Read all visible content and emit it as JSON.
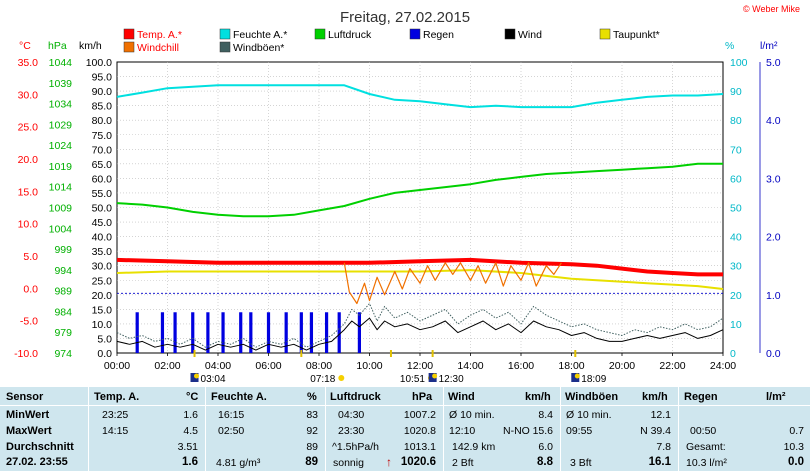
{
  "title": "Freitag, 27.02.2015",
  "credit": "© Weber Mike",
  "chart_data": {
    "type": "line",
    "title": "Freitag, 27.02.2015",
    "legend": [
      {
        "name": "Temp. A.*",
        "color": "#ff0000"
      },
      {
        "name": "Feuchte A.*",
        "color": "#00e0e0"
      },
      {
        "name": "Luftdruck",
        "color": "#00d000"
      },
      {
        "name": "Regen",
        "color": "#0000e0"
      },
      {
        "name": "Wind",
        "color": "#000000"
      },
      {
        "name": "Taupunkt*",
        "color": "#e8e000"
      },
      {
        "name": "Windchill",
        "color": "#f07000"
      },
      {
        "name": "Windböen*",
        "color": "#406060"
      }
    ],
    "axes": {
      "temp": {
        "unit": "°C",
        "ticks": [
          "35.0",
          "30.0",
          "25.0",
          "20.0",
          "15.0",
          "10.0",
          "5.0",
          "0.0",
          "-5.0",
          "-10.0"
        ],
        "color": "#ff0000"
      },
      "press": {
        "unit": "hPa",
        "ticks": [
          "1044",
          "1039",
          "1034",
          "1029",
          "1024",
          "1019",
          "1014",
          "1009",
          "1004",
          "999",
          "994",
          "989",
          "984",
          "979",
          "974"
        ],
        "color": "#00b000"
      },
      "wind": {
        "unit": "km/h",
        "ticks": [
          "100.0",
          "95.0",
          "90.0",
          "85.0",
          "80.0",
          "75.0",
          "70.0",
          "65.0",
          "60.0",
          "55.0",
          "50.0",
          "45.0",
          "40.0",
          "35.0",
          "30.0",
          "25.0",
          "20.0",
          "15.0",
          "10.0",
          "5.0",
          "0.0"
        ],
        "color": "#000000"
      },
      "hum": {
        "unit": "%",
        "ticks": [
          "100",
          "90",
          "80",
          "70",
          "60",
          "50",
          "40",
          "30",
          "20",
          "10",
          "0"
        ],
        "color": "#00b8c8"
      },
      "rain": {
        "unit": "l/m²",
        "ticks": [
          "5.0",
          "4.0",
          "3.0",
          "2.0",
          "1.0",
          "0.0"
        ],
        "color": "#0000c0"
      },
      "x_ticks": [
        "00:00",
        "02:00",
        "04:00",
        "06:00",
        "08:00",
        "10:00",
        "12:00",
        "14:00",
        "16:00",
        "18:00",
        "20:00",
        "22:00",
        "24:00"
      ]
    },
    "xlim": [
      0,
      24
    ],
    "ylim_wind": [
      0,
      100
    ],
    "grid": true,
    "series": [
      {
        "name": "Temp. A.*",
        "axis": "wind",
        "x": [
          0,
          2,
          4,
          6,
          8,
          10,
          12,
          14,
          16,
          18,
          19,
          20,
          21,
          22,
          23,
          24
        ],
        "values": [
          32,
          31.5,
          31,
          31,
          31,
          31,
          31.5,
          32,
          31,
          30.5,
          30,
          29,
          28,
          27.5,
          27,
          27
        ]
      },
      {
        "name": "Feuchte A.*",
        "axis": "wind",
        "x": [
          0,
          1,
          2,
          3,
          4,
          6,
          8,
          9,
          10,
          11,
          12,
          13,
          14,
          15,
          16,
          18,
          19,
          20,
          21,
          22,
          23,
          24
        ],
        "values": [
          88,
          89.5,
          91,
          91.5,
          92,
          92,
          92,
          92,
          89,
          87,
          86.5,
          85.5,
          84.5,
          85,
          84.5,
          84.5,
          86,
          87,
          88,
          88.5,
          88.5,
          89
        ]
      },
      {
        "name": "Luftdruck",
        "axis": "wind",
        "x": [
          0,
          1,
          2,
          3,
          4,
          5,
          6,
          7,
          8,
          9,
          10,
          11,
          12,
          13,
          14,
          15,
          16,
          17,
          18,
          19,
          20,
          21,
          22,
          23,
          24
        ],
        "values": [
          51.5,
          51,
          50,
          48.5,
          47.5,
          47,
          47,
          47.5,
          49,
          50.5,
          53,
          55,
          56,
          57,
          58,
          59.5,
          60.5,
          61.5,
          62,
          62.5,
          63,
          63.5,
          64,
          65,
          65
        ]
      },
      {
        "name": "Taupunkt*",
        "axis": "wind",
        "x": [
          0,
          2,
          4,
          6,
          8,
          10,
          12,
          14,
          16,
          17,
          18,
          19,
          20,
          21,
          22,
          23,
          24
        ],
        "values": [
          27.5,
          28,
          28,
          28,
          28,
          28,
          28,
          28.5,
          27.5,
          26.5,
          25.5,
          25,
          24.5,
          24,
          23.5,
          23,
          22
        ]
      },
      {
        "name": "Windchill",
        "axis": "wind",
        "x": [
          9.0,
          9.2,
          9.5,
          9.8,
          10.0,
          10.3,
          10.6,
          11.0,
          11.3,
          11.6,
          12.0,
          12.3,
          12.6,
          13.0,
          13.3,
          13.6,
          14.0,
          14.3,
          14.6,
          15.0,
          15.3,
          15.6,
          16.0,
          16.3,
          16.6,
          17.0,
          17.3,
          17.6
        ],
        "values": [
          31,
          21,
          17,
          24,
          18,
          26,
          20,
          28,
          22,
          29,
          24,
          30,
          25,
          31,
          27,
          31,
          25,
          30,
          24,
          31,
          23,
          30,
          25,
          31,
          23,
          30,
          27,
          31
        ]
      },
      {
        "name": "Windböen*",
        "axis": "wind",
        "x": [
          0,
          0.5,
          1,
          1.5,
          2,
          2.5,
          3,
          3.5,
          4,
          4.5,
          5,
          5.5,
          6,
          6.5,
          7,
          7.5,
          8,
          8.5,
          9,
          9.3,
          9.6,
          10,
          10.3,
          10.6,
          11,
          11.5,
          12,
          12.5,
          13,
          13.5,
          14,
          14.5,
          15,
          15.5,
          16,
          16.5,
          17,
          17.5,
          18,
          18.5,
          19,
          19.5,
          20,
          20.5,
          21,
          21.5,
          22,
          22.5,
          23,
          23.5,
          24
        ],
        "values": [
          7,
          5,
          6,
          4,
          5,
          3,
          5,
          2,
          4,
          3,
          5,
          2,
          4,
          3,
          5,
          2,
          4,
          6,
          10,
          15,
          13,
          17,
          11,
          16,
          12,
          14,
          11,
          13,
          15,
          10,
          13,
          15,
          12,
          14,
          10,
          16,
          13,
          11,
          9,
          10,
          8,
          7,
          6,
          8,
          7,
          9,
          8,
          10,
          8,
          9,
          12
        ]
      },
      {
        "name": "Wind",
        "axis": "wind",
        "x": [
          0,
          0.5,
          1,
          1.5,
          2,
          2.5,
          3,
          3.5,
          4,
          4.5,
          5,
          5.5,
          6,
          6.5,
          7,
          7.5,
          8,
          8.5,
          9,
          9.3,
          9.6,
          10,
          10.3,
          10.6,
          11,
          11.5,
          12,
          12.5,
          13,
          13.5,
          14,
          14.5,
          15,
          15.5,
          16,
          16.5,
          17,
          17.5,
          18,
          18.5,
          19,
          19.5,
          20,
          20.5,
          21,
          21.5,
          22,
          22.5,
          23,
          23.5,
          24
        ],
        "values": [
          4,
          3,
          4,
          2,
          3,
          2,
          3,
          1,
          3,
          2,
          3,
          1,
          3,
          2,
          3,
          1,
          3,
          4,
          8,
          11,
          9,
          12,
          8,
          11,
          9,
          10,
          8,
          9,
          11,
          7,
          9,
          11,
          8,
          10,
          7,
          11,
          9,
          8,
          6,
          7,
          5,
          4,
          4,
          5,
          6,
          5,
          6,
          7,
          5,
          6,
          8
        ]
      }
    ],
    "rain_bars": {
      "name": "Regen",
      "axis": "wind",
      "x": [
        0.8,
        1.8,
        2.3,
        3.0,
        3.6,
        4.2,
        4.9,
        5.3,
        6.0,
        6.7,
        7.3,
        7.7,
        8.3,
        8.8,
        9.6
      ],
      "values": [
        14,
        14,
        14,
        14,
        14,
        14,
        14,
        14,
        14,
        14,
        14,
        14,
        14,
        14,
        14
      ]
    }
  },
  "markers": [
    {
      "time": "03:04",
      "x": 3.07,
      "label": "03:04",
      "kind": "sunrise",
      "row": "b"
    },
    {
      "time": "07:18",
      "x": 7.3,
      "label": "07:18",
      "kind": "sun",
      "row": "a"
    },
    {
      "time": "10:51",
      "x": 10.85,
      "label": "10:51",
      "kind": "moon",
      "row": "a"
    },
    {
      "time": "12:30",
      "x": 12.5,
      "label": "12:30",
      "kind": "moonset",
      "row": "b"
    },
    {
      "time": "18:09",
      "x": 18.15,
      "label": "18:09",
      "kind": "sunset",
      "row": "b"
    }
  ],
  "table": {
    "headers": {
      "sensor": "Sensor",
      "temp": "Temp. A.",
      "temp_u": "°C",
      "hum": "Feuchte A.",
      "hum_u": "%",
      "press": "Luftdruck",
      "press_u": "hPa",
      "wind": "Wind",
      "wind_u": "km/h",
      "gust": "Windböen",
      "gust_u": "km/h",
      "rain": "Regen",
      "rain_u": "l/m²"
    },
    "rows": {
      "min": {
        "label": "MinWert",
        "temp_t": "23:25",
        "temp_v": "1.6",
        "hum_t": "16:15",
        "hum_v": "83",
        "press_t": "04:30",
        "press_v": "1007.2",
        "wind_t": "Ø 10 min.",
        "wind_v": "8.4",
        "gust_t": "Ø 10 min.",
        "gust_v": "12.1",
        "rain_t": "",
        "rain_v": ""
      },
      "max": {
        "label": "MaxWert",
        "temp_t": "14:15",
        "temp_v": "4.5",
        "hum_t": "02:50",
        "hum_v": "92",
        "press_t": "23:30",
        "press_v": "1020.8",
        "wind_t": "12:10",
        "wind_m": "N-NO",
        "wind_v": "15.6",
        "gust_t": "09:55",
        "gust_m": "N 39.4",
        "gust_v": "",
        "rain_t": "00:50",
        "rain_v": "0.7"
      },
      "avg": {
        "label": "Durchschnitt",
        "temp_v": "3.51",
        "hum_v": "89",
        "press_t": "^1.5hPa/h",
        "press_v": "1013.1",
        "wind_t": "142.9 km",
        "wind_v": "6.0",
        "gust_v": "7.8",
        "rain_t": "Gesamt:",
        "rain_v": "10.3"
      },
      "cur": {
        "label": "27.02. 23:55",
        "temp_v": "1.6",
        "hum_t": "4.81 g/m³",
        "hum_v": "89",
        "press_t": "sonnig",
        "press_v": "1020.6",
        "wind_t": "2 Bft",
        "wind_v": "8.8",
        "gust_t": "3 Bft",
        "gust_v": "16.1",
        "rain_t": "10.3 l/m²",
        "rain_v": "0.0"
      }
    }
  }
}
